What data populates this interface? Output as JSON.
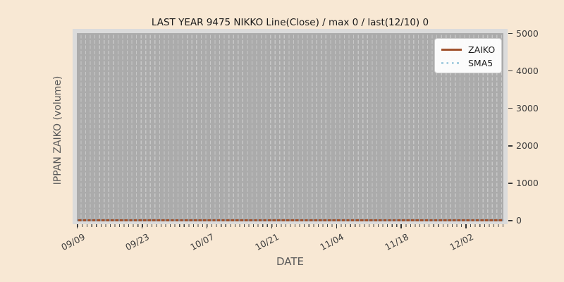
{
  "figure": {
    "title": "LAST YEAR 9475 NIKKO Line(Close) / max 0 / last(12/10) 0",
    "xlabel": "DATE",
    "ylabel": "IPPAN ZAIKO (volume)",
    "background_color": "#f8e8d4",
    "plot_background_color": "#ababab",
    "plot_frame_color": "#dbdbdb",
    "gridline_color": "#c7c7c7"
  },
  "legend": {
    "position": "upper right",
    "items": [
      {
        "label": "ZAIKO",
        "style": "solid",
        "color": "#a0522d"
      },
      {
        "label": "SMA5",
        "style": "dotted",
        "color": "#a8cee0"
      }
    ]
  },
  "chart_data": {
    "type": "line",
    "title": "LAST YEAR 9475 NIKKO Line(Close) / max 0 / last(12/10) 0",
    "xlabel": "DATE",
    "ylabel": "IPPAN ZAIKO (volume)",
    "ylim": [
      0,
      5000
    ],
    "yticks": [
      0,
      1000,
      2000,
      3000,
      4000,
      5000
    ],
    "ytick_side": "right",
    "xtick_labels": [
      "09/09",
      "09/23",
      "10/07",
      "10/21",
      "11/04",
      "11/18",
      "12/02"
    ],
    "xtick_day_offsets": [
      0,
      14,
      28,
      42,
      56,
      70,
      84
    ],
    "x_start_date": "09/09",
    "x_end_date": "12/10",
    "x_total_day_intervals": 92,
    "series": [
      {
        "name": "ZAIKO",
        "style": "solid",
        "color": "#a0522d",
        "constant_value": 0
      },
      {
        "name": "SMA5",
        "style": "dotted",
        "color": "#a8cee0",
        "constant_value": 0
      }
    ],
    "max_value": 0,
    "last_date": "12/10",
    "last_value": 0,
    "grid": "vertical dashed line per day",
    "legend_position": "upper right"
  }
}
